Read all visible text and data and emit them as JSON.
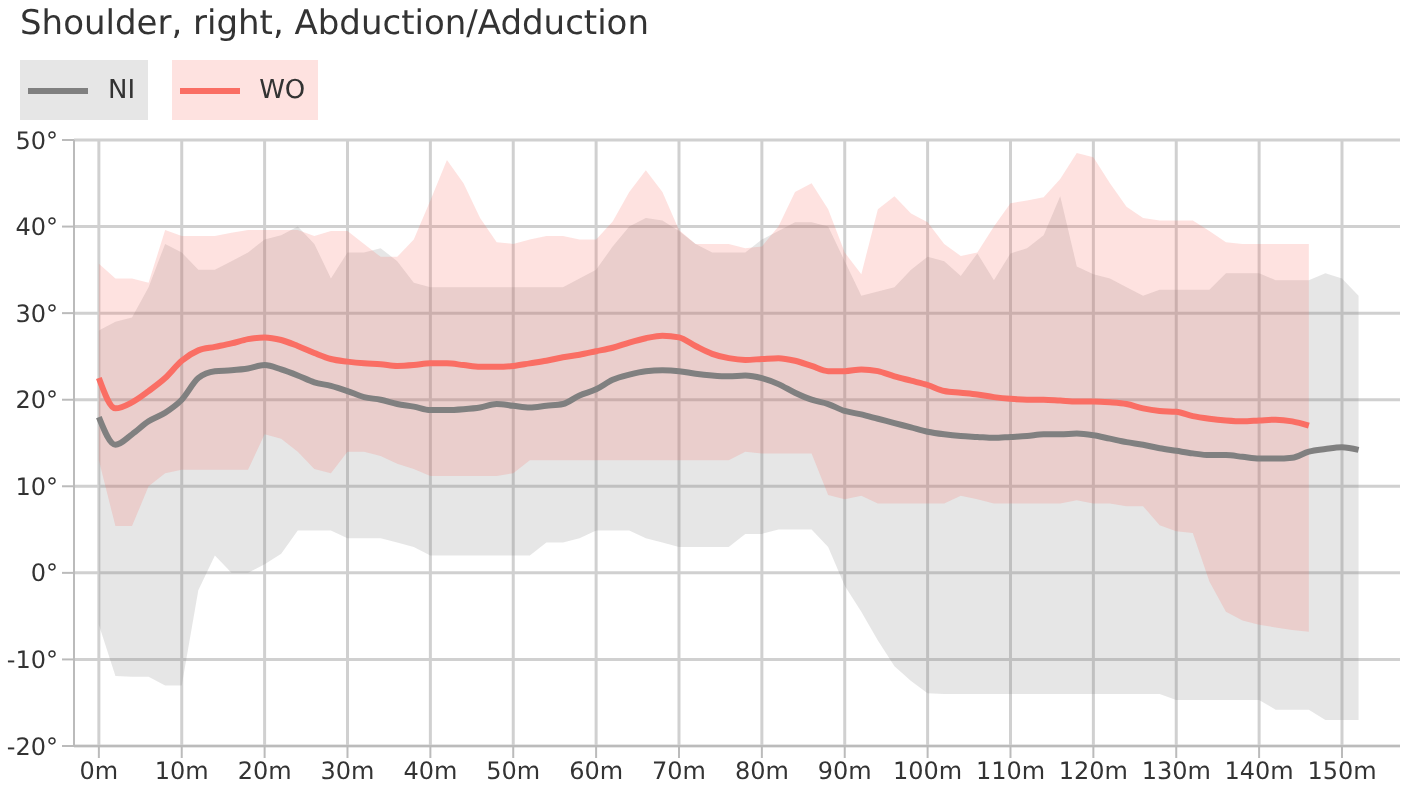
{
  "chart_data": {
    "type": "line",
    "title": "Shoulder, right, Abduction/Adduction",
    "xlim": [
      -3,
      157
    ],
    "xticks": [
      {
        "value": 0,
        "label": "0m"
      },
      {
        "value": 10,
        "label": "10m"
      },
      {
        "value": 20,
        "label": "20m"
      },
      {
        "value": 30,
        "label": "30m"
      },
      {
        "value": 40,
        "label": "40m"
      },
      {
        "value": 50,
        "label": "50m"
      },
      {
        "value": 60,
        "label": "60m"
      },
      {
        "value": 70,
        "label": "70m"
      },
      {
        "value": 80,
        "label": "80m"
      },
      {
        "value": 90,
        "label": "90m"
      },
      {
        "value": 100,
        "label": "100m"
      },
      {
        "value": 110,
        "label": "110m"
      },
      {
        "value": 120,
        "label": "120m"
      },
      {
        "value": 130,
        "label": "130m"
      },
      {
        "value": 140,
        "label": "140m"
      },
      {
        "value": 150,
        "label": "150m"
      }
    ],
    "ylim": [
      -20,
      50
    ],
    "yticks": [
      {
        "value": -20,
        "label": "-20°"
      },
      {
        "value": -10,
        "label": "-10°"
      },
      {
        "value": 0,
        "label": "0°"
      },
      {
        "value": 10,
        "label": "10°"
      },
      {
        "value": 20,
        "label": "20°"
      },
      {
        "value": 30,
        "label": "30°"
      },
      {
        "value": 40,
        "label": "40°"
      },
      {
        "value": 50,
        "label": "50°"
      }
    ],
    "grid": true,
    "legend": "top left",
    "marker": "none",
    "line_style": "solid",
    "series": [
      {
        "name": "NI",
        "color": "#808080",
        "x": [
          0,
          2,
          4,
          6,
          8,
          10,
          12,
          14,
          16,
          18,
          20,
          22,
          24,
          26,
          28,
          30,
          32,
          34,
          36,
          38,
          40,
          42,
          44,
          46,
          48,
          50,
          52,
          54,
          56,
          58,
          60,
          62,
          64,
          66,
          68,
          70,
          72,
          74,
          76,
          78,
          80,
          82,
          84,
          86,
          88,
          90,
          92,
          94,
          96,
          98,
          100,
          102,
          104,
          106,
          108,
          110,
          112,
          114,
          116,
          118,
          120,
          122,
          124,
          126,
          128,
          130,
          132,
          134,
          136,
          138,
          140,
          142,
          144,
          146,
          148,
          150,
          152
        ],
        "values": [
          18,
          14.8,
          16,
          17.5,
          18.5,
          20,
          22.5,
          23.3,
          23.4,
          23.6,
          24,
          23.5,
          22.8,
          22,
          21.6,
          21,
          20.3,
          20,
          19.5,
          19.2,
          18.8,
          18.8,
          18.9,
          19.1,
          19.5,
          19.3,
          19.1,
          19.3,
          19.5,
          20.5,
          21.2,
          22.3,
          22.9,
          23.3,
          23.4,
          23.3,
          23,
          22.8,
          22.7,
          22.8,
          22.5,
          21.8,
          20.8,
          20,
          19.5,
          18.7,
          18.3,
          17.8,
          17.3,
          16.8,
          16.3,
          16,
          15.8,
          15.7,
          15.6,
          15.7,
          15.8,
          16,
          16,
          16.1,
          15.9,
          15.5,
          15.1,
          14.8,
          14.4,
          14.1,
          13.8,
          13.6,
          13.6,
          13.4,
          13.2,
          13.2,
          13.3,
          14,
          14.3,
          14.5,
          14.2
        ],
        "upper": [
          28,
          29,
          29.5,
          33,
          38,
          37,
          35,
          35,
          36,
          37,
          38.5,
          39,
          40,
          38,
          34,
          37,
          37,
          37.5,
          36,
          33.5,
          33,
          33,
          33,
          33,
          33,
          33,
          33,
          33,
          33,
          34,
          35,
          37.7,
          40,
          41,
          40.7,
          39.5,
          38,
          37,
          37,
          37,
          38.5,
          39.5,
          40.5,
          40.5,
          40,
          36,
          32,
          32.5,
          33,
          35,
          36.5,
          36,
          34.3,
          36.9,
          33.8,
          36.9,
          37.5,
          39,
          43.5,
          35.4,
          34.5,
          34,
          33,
          32,
          32.7,
          32.7,
          32.7,
          32.7,
          34.6,
          34.6,
          34.6,
          33.8,
          33.8,
          33.8,
          34.6,
          34,
          32
        ],
        "lower": [
          -6,
          -11.9,
          -12,
          -12,
          -13,
          -13,
          -2,
          2,
          0,
          0,
          1,
          2.2,
          4.9,
          4.9,
          4.9,
          4,
          4,
          4,
          3.5,
          3,
          2,
          2,
          2,
          2,
          2,
          2,
          2,
          3.5,
          3.5,
          4,
          4.9,
          4.9,
          4.9,
          4,
          3.5,
          3,
          3,
          3,
          3,
          4.5,
          4.5,
          5,
          5,
          5,
          3,
          -1.5,
          -4.5,
          -7.8,
          -10.8,
          -12.5,
          -13.9,
          -14,
          -14,
          -14,
          -14,
          -14,
          -14,
          -14,
          -14,
          -14,
          -14,
          -14,
          -14,
          -14,
          -14,
          -14.7,
          -14.7,
          -14.7,
          -14.7,
          -14.7,
          -14.7,
          -15.8,
          -15.8,
          -15.8,
          -17,
          -17,
          -17
        ]
      },
      {
        "name": "WO",
        "color": "#fa6e64",
        "x": [
          0,
          2,
          4,
          6,
          8,
          10,
          12,
          14,
          16,
          18,
          20,
          22,
          24,
          26,
          28,
          30,
          32,
          34,
          36,
          38,
          40,
          42,
          44,
          46,
          48,
          50,
          52,
          54,
          56,
          58,
          60,
          62,
          64,
          66,
          68,
          70,
          72,
          74,
          76,
          78,
          80,
          82,
          84,
          86,
          88,
          90,
          92,
          94,
          96,
          98,
          100,
          102,
          104,
          106,
          108,
          110,
          112,
          114,
          116,
          118,
          120,
          122,
          124,
          126,
          128,
          130,
          132,
          134,
          136,
          138,
          140,
          142,
          144,
          146
        ],
        "values": [
          22.5,
          19,
          19.7,
          21,
          22.5,
          24.5,
          25.7,
          26.1,
          26.5,
          27,
          27.2,
          26.9,
          26.2,
          25.4,
          24.7,
          24.4,
          24.2,
          24.1,
          23.9,
          24,
          24.2,
          24.2,
          24,
          23.8,
          23.8,
          23.9,
          24.2,
          24.5,
          24.9,
          25.2,
          25.6,
          26,
          26.6,
          27.1,
          27.4,
          27.2,
          26.2,
          25.3,
          24.8,
          24.6,
          24.7,
          24.8,
          24.5,
          23.9,
          23.3,
          23.3,
          23.5,
          23.3,
          22.7,
          22.2,
          21.7,
          21,
          20.8,
          20.6,
          20.3,
          20.1,
          20,
          20,
          19.9,
          19.8,
          19.8,
          19.7,
          19.5,
          19,
          18.7,
          18.6,
          18.1,
          17.8,
          17.6,
          17.5,
          17.6,
          17.7,
          17.5,
          17
        ],
        "upper": [
          35.7,
          34,
          34,
          33.5,
          39.6,
          38.9,
          38.9,
          38.9,
          39.3,
          39.6,
          39.6,
          39.6,
          39.6,
          38.9,
          39.5,
          39.5,
          38,
          36.5,
          36.5,
          38.5,
          43,
          47.7,
          45,
          41,
          38.2,
          38,
          38.5,
          38.9,
          38.9,
          38.5,
          38.5,
          40.6,
          44,
          46.5,
          44,
          39.6,
          38,
          38,
          38,
          37.5,
          37.7,
          40,
          44,
          45,
          42,
          37,
          34.5,
          42,
          43.5,
          41.5,
          40.5,
          38,
          36.6,
          37,
          40,
          42.7,
          43,
          43.4,
          45.5,
          48.5,
          48,
          45,
          42.3,
          41,
          40.7,
          40.7,
          40.7,
          39.5,
          38.2,
          38,
          38,
          38,
          38,
          38
        ],
        "lower": [
          13,
          5.4,
          5.4,
          10,
          11.5,
          11.9,
          11.9,
          11.9,
          11.9,
          11.9,
          16,
          15.5,
          14,
          12,
          11.5,
          14,
          14,
          13.5,
          12.6,
          12,
          11.2,
          11.2,
          11.2,
          11.2,
          11.2,
          11.5,
          13,
          13,
          13,
          13,
          13,
          13,
          13,
          13,
          13,
          13,
          13,
          13,
          13,
          14,
          13.8,
          13.8,
          13.8,
          13.8,
          9,
          8.5,
          8.9,
          8,
          8,
          8,
          8,
          8,
          8.9,
          8.5,
          8,
          8,
          8,
          8,
          8,
          8.4,
          8,
          8,
          7.7,
          7.7,
          5.5,
          4.8,
          4.6,
          -1,
          -4.5,
          -5.5,
          -6,
          -6.3,
          -6.6,
          -6.8
        ]
      }
    ]
  }
}
